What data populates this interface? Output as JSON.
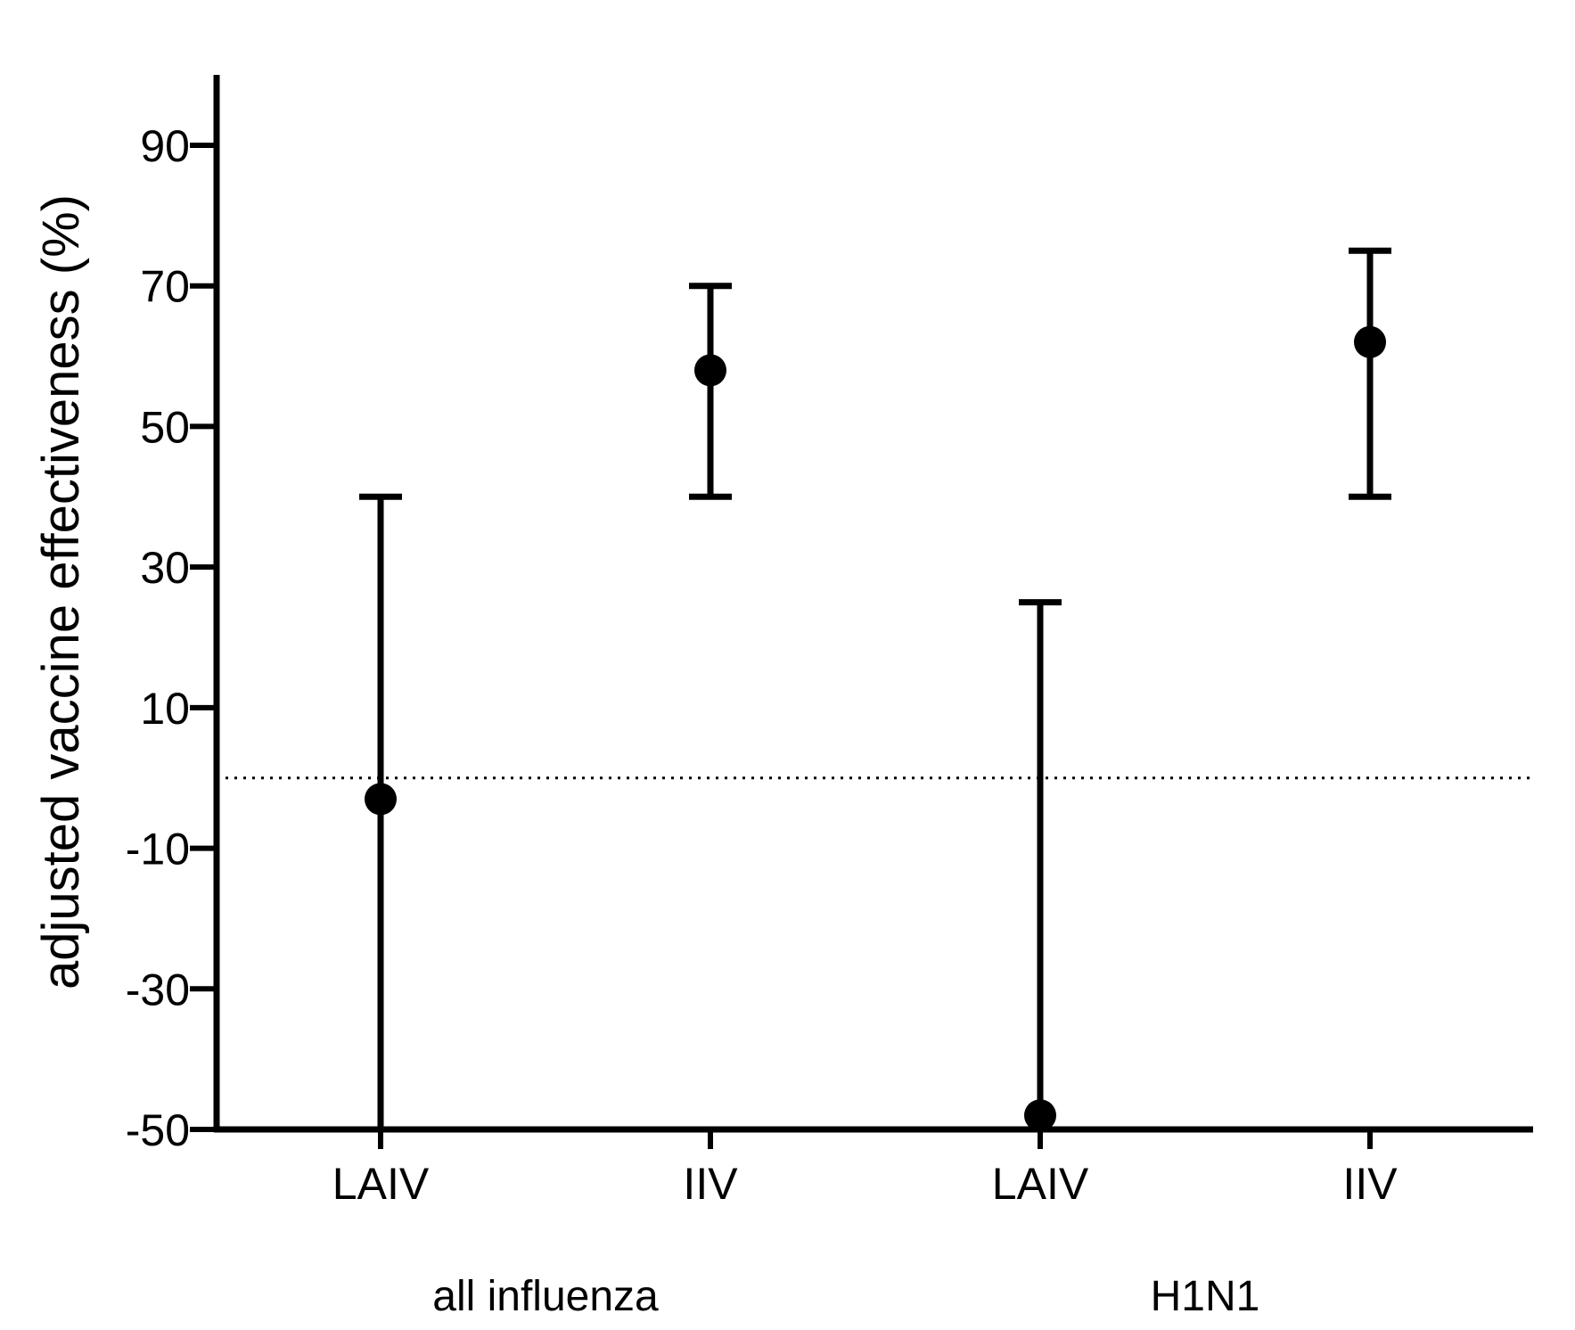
{
  "chart_data": {
    "type": "scatter",
    "title": "",
    "xlabel": "",
    "ylabel": "adjusted vaccine effectiveness (%)",
    "ylim": [
      -50,
      100
    ],
    "yticks": [
      -50,
      -30,
      -10,
      10,
      30,
      50,
      70,
      90
    ],
    "grid": false,
    "reference_line": {
      "y": 0,
      "style": "dotted"
    },
    "categories": [
      "LAIV",
      "IIV",
      "LAIV",
      "IIV"
    ],
    "groups": [
      {
        "label": "all influenza",
        "categories": [
          0,
          1
        ]
      },
      {
        "label": "H1N1",
        "categories": [
          2,
          3
        ]
      }
    ],
    "points": [
      {
        "category": "LAIV",
        "group": "all influenza",
        "estimate": -3,
        "ci_low": -50,
        "ci_high": 40
      },
      {
        "category": "IIV",
        "group": "all influenza",
        "estimate": 58,
        "ci_low": 40,
        "ci_high": 70
      },
      {
        "category": "LAIV",
        "group": "H1N1",
        "estimate": -48,
        "ci_low": -50,
        "ci_high": 25
      },
      {
        "category": "IIV",
        "group": "H1N1",
        "estimate": 62,
        "ci_low": 40,
        "ci_high": 75
      }
    ],
    "colors": {
      "marker": "#000000",
      "axis": "#000000"
    }
  }
}
